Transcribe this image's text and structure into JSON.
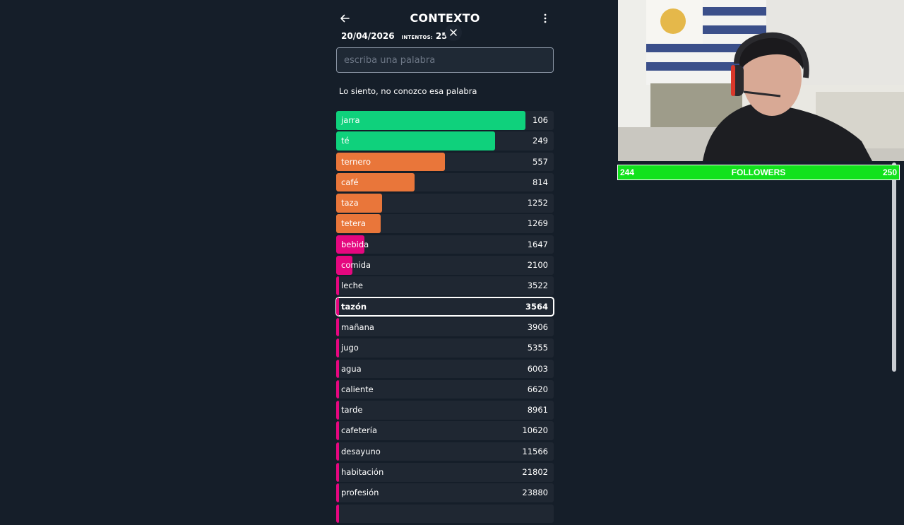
{
  "header": {
    "title": "CONTEXTO",
    "date": "20/04/2026",
    "attempts_label": "INTENTOS:",
    "attempts": "25"
  },
  "search": {
    "placeholder": "escriba una palabra"
  },
  "message": "Lo siento, no conozco esa palabra",
  "colors": {
    "green": "#0fd17c",
    "orange": "#e9763a",
    "pink": "#e5077f",
    "row_bg": "#1f2732"
  },
  "guesses": [
    {
      "word": "jarra",
      "rank": "106",
      "color": "green",
      "fill": 0.87
    },
    {
      "word": "té",
      "rank": "249",
      "color": "green",
      "fill": 0.73
    },
    {
      "word": "ternero",
      "rank": "557",
      "color": "orange",
      "fill": 0.5
    },
    {
      "word": "café",
      "rank": "814",
      "color": "orange",
      "fill": 0.36
    },
    {
      "word": "taza",
      "rank": "1252",
      "color": "orange",
      "fill": 0.21
    },
    {
      "word": "tetera",
      "rank": "1269",
      "color": "orange",
      "fill": 0.205
    },
    {
      "word": "bebida",
      "rank": "1647",
      "color": "pink",
      "fill": 0.13
    },
    {
      "word": "comida",
      "rank": "2100",
      "color": "pink",
      "fill": 0.075
    },
    {
      "word": "leche",
      "rank": "3522",
      "color": "pink",
      "fill": 0.012
    },
    {
      "word": "tazón",
      "rank": "3564",
      "color": "pink",
      "fill": 0.012,
      "highlighted": true
    },
    {
      "word": "mañana",
      "rank": "3906",
      "color": "pink",
      "fill": 0.012
    },
    {
      "word": "jugo",
      "rank": "5355",
      "color": "pink",
      "fill": 0.012
    },
    {
      "word": "agua",
      "rank": "6003",
      "color": "pink",
      "fill": 0.012
    },
    {
      "word": "caliente",
      "rank": "6620",
      "color": "pink",
      "fill": 0.012
    },
    {
      "word": "tarde",
      "rank": "8961",
      "color": "pink",
      "fill": 0.012
    },
    {
      "word": "cafetería",
      "rank": "10620",
      "color": "pink",
      "fill": 0.012
    },
    {
      "word": "desayuno",
      "rank": "11566",
      "color": "pink",
      "fill": 0.012
    },
    {
      "word": "habitación",
      "rank": "21802",
      "color": "pink",
      "fill": 0.012
    },
    {
      "word": "profesión",
      "rank": "23880",
      "color": "pink",
      "fill": 0.012
    },
    {
      "word": "",
      "rank": "",
      "color": "pink",
      "fill": 0.012
    }
  ],
  "followers": {
    "current": "244",
    "label": "FOLLOWERS",
    "goal": "250"
  },
  "icons": {
    "back": "arrow-left-icon",
    "menu": "more-vertical-icon",
    "close": "close-icon"
  }
}
